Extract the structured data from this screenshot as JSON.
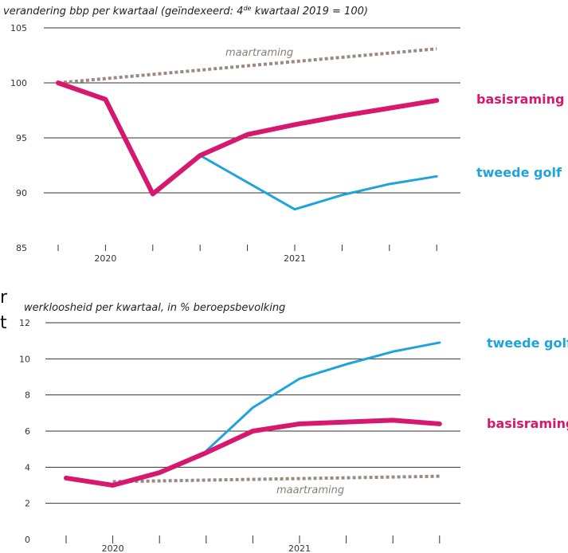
{
  "chart_data": [
    {
      "type": "line",
      "title": "verandering bbp per kwartaal (geïndexeerd: 4de kwartaal 2019 = 100)",
      "title_parts": [
        "verandering bbp per kwartaal (geïndexeerd: 4",
        "de",
        " kwartaal 2019 = 100)"
      ],
      "xlabel": "",
      "ylabel": "",
      "x": [
        0,
        1,
        2,
        3,
        4,
        5,
        6,
        7,
        8
      ],
      "x_tick_labels": [
        {
          "label": "2020",
          "x": 1
        },
        {
          "label": "2021",
          "x": 5
        }
      ],
      "ylim": [
        85,
        105
      ],
      "yticks": [
        85,
        90,
        95,
        100,
        105
      ],
      "grid": true,
      "series": [
        {
          "name": "maartraming",
          "color": "#9b8a80",
          "style": "dotted",
          "x": [
            0,
            8
          ],
          "values": [
            100,
            103.1
          ]
        },
        {
          "name": "tweede golf",
          "color": "#1fa3dd",
          "style": "solid",
          "x": [
            3,
            5,
            6,
            7,
            8
          ],
          "values": [
            93.4,
            88.5,
            89.8,
            90.8,
            91.5
          ]
        },
        {
          "name": "basisraming",
          "color": "#d6196e",
          "style": "solid",
          "x": [
            0,
            1,
            2,
            3,
            4,
            5,
            6,
            7,
            8
          ],
          "values": [
            100,
            98.5,
            89.9,
            93.4,
            95.3,
            96.2,
            97.0,
            97.7,
            98.4
          ]
        }
      ]
    },
    {
      "type": "line",
      "title": "werkloosheid per kwartaal, in % beroepsbevolking",
      "xlabel": "",
      "ylabel": "",
      "x": [
        0,
        1,
        2,
        3,
        4,
        5,
        6,
        7,
        8
      ],
      "x_tick_labels": [
        {
          "label": "2020",
          "x": 1
        },
        {
          "label": "2021",
          "x": 5
        }
      ],
      "ylim": [
        0,
        12
      ],
      "yticks": [
        0,
        2,
        4,
        6,
        8,
        10,
        12
      ],
      "grid": true,
      "series": [
        {
          "name": "maartraming",
          "color": "#9b8a80",
          "style": "dotted",
          "x": [
            1,
            8
          ],
          "values": [
            3.2,
            3.5
          ]
        },
        {
          "name": "tweede golf",
          "color": "#1fa3dd",
          "style": "solid",
          "x": [
            3,
            4,
            5,
            6,
            7,
            8
          ],
          "values": [
            4.9,
            7.3,
            8.9,
            9.7,
            10.4,
            10.9
          ]
        },
        {
          "name": "basisraming",
          "color": "#d6196e",
          "style": "solid",
          "x": [
            0,
            1,
            2,
            3,
            4,
            5,
            6,
            7,
            8
          ],
          "values": [
            3.4,
            3.0,
            3.7,
            4.8,
            6.0,
            6.4,
            6.5,
            6.6,
            6.4
          ]
        }
      ]
    }
  ],
  "edge_glyphs": [
    "r",
    "t"
  ]
}
